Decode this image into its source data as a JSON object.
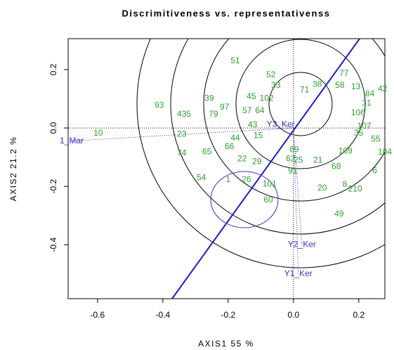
{
  "chart_data": {
    "type": "scatter",
    "title": "Discrimitiveness vs. representativenss",
    "xlabel": "AXIS1 55 %",
    "ylabel": "AXIS2 21.2 %",
    "xlim": [
      -0.69,
      0.28
    ],
    "ylim": [
      -0.585,
      0.306
    ],
    "xticks": [
      -0.6,
      -0.4,
      -0.2,
      {
        "value": 0,
        "label": "0.0"
      },
      0.2
    ],
    "yticks": [
      0.2,
      {
        "value": 0,
        "label": "0.0"
      },
      -0.2,
      -0.4
    ],
    "series": [
      {
        "color": "#2ea02e",
        "labels": [
          "51",
          "93",
          "435",
          "79",
          "97",
          "39",
          "45",
          "52",
          "33",
          "71",
          "38",
          "58",
          "77",
          "13",
          "84",
          "42",
          "31",
          "106",
          "107",
          "35",
          "55",
          "104",
          "6",
          "10",
          "23",
          "74",
          "65",
          "66",
          "44",
          "15",
          "22",
          "29",
          "54",
          "1",
          "26",
          "101",
          "60",
          "91",
          "62",
          "69",
          "25",
          "21",
          "68",
          "20",
          "8",
          "210",
          "49",
          "109",
          "57",
          "64",
          "102",
          "43"
        ],
        "x": [
          -0.178,
          -0.411,
          -0.335,
          -0.245,
          -0.211,
          -0.258,
          -0.129,
          -0.069,
          -0.054,
          0.034,
          0.073,
          0.142,
          0.155,
          0.191,
          0.234,
          0.273,
          0.224,
          0.198,
          0.217,
          0.2,
          0.252,
          0.28,
          0.249,
          -0.598,
          -0.342,
          -0.342,
          -0.265,
          -0.196,
          -0.178,
          -0.108,
          -0.157,
          -0.112,
          -0.282,
          -0.2,
          -0.144,
          -0.073,
          -0.077,
          -0.002,
          -0.009,
          0.002,
          0.015,
          0.075,
          0.131,
          0.088,
          0.157,
          0.189,
          0.14,
          0.159,
          -0.142,
          -0.103,
          -0.082,
          -0.125
        ],
        "y": [
          0.229,
          0.077,
          0.046,
          0.046,
          0.07,
          0.101,
          0.106,
          0.181,
          0.145,
          0.13,
          0.149,
          0.145,
          0.186,
          0.14,
          0.116,
          0.133,
          0.084,
          0.051,
          0.005,
          -0.019,
          -0.039,
          -0.084,
          -0.147,
          -0.019,
          -0.022,
          -0.087,
          -0.082,
          -0.065,
          -0.036,
          -0.027,
          -0.106,
          -0.116,
          -0.171,
          -0.178,
          -0.178,
          -0.193,
          -0.248,
          -0.149,
          -0.106,
          -0.075,
          -0.111,
          -0.111,
          -0.133,
          -0.207,
          -0.195,
          -0.21,
          -0.296,
          -0.08,
          0.058,
          0.058,
          0.101,
          0.01
        ]
      },
      {
        "color": "#3333cc",
        "labels": [
          "1_Mar",
          "Y3_Ker",
          "Y2_Ker",
          "Y1_Ker"
        ],
        "x": [
          -0.69,
          -0.039,
          0.026,
          0.015
        ],
        "y": [
          -0.045,
          0.012,
          -0.4,
          -0.5
        ]
      }
    ]
  }
}
